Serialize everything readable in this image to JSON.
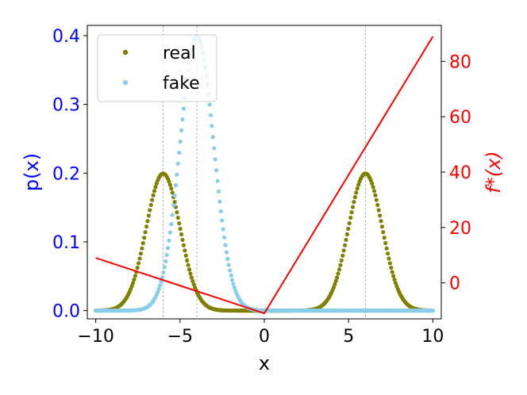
{
  "chart_data": {
    "type": "scatter",
    "title": "",
    "xlabel": "x",
    "ylabel_left": "p(x)",
    "ylabel_right": "f*(x)",
    "xlim": [
      -10.5,
      10.5
    ],
    "ylim_left": [
      -0.012,
      0.415
    ],
    "ylim_right": [
      -13,
      93
    ],
    "xticks": [
      -10,
      -5,
      0,
      5,
      10
    ],
    "xtick_labels": [
      "−10",
      "−5",
      "0",
      "5",
      "10"
    ],
    "yticks_left": [
      0.0,
      0.1,
      0.2,
      0.3,
      0.4
    ],
    "ytick_labels_left": [
      "0.0",
      "0.1",
      "0.2",
      "0.3",
      "0.4"
    ],
    "yticks_right": [
      0,
      20,
      40,
      60,
      80
    ],
    "ytick_labels_right": [
      "0",
      "20",
      "40",
      "60",
      "80"
    ],
    "vlines": [
      -6,
      -4,
      6
    ],
    "legend": {
      "placement": "top-left",
      "entries": [
        "real",
        "fake"
      ]
    },
    "colors": {
      "real": "#808000",
      "fake": "#87ceeb",
      "fstar": "#ff0000",
      "left_axis": "#0000ff",
      "right_axis": "#ff0000"
    },
    "series": [
      {
        "name": "real",
        "kind": "points",
        "axis": "left",
        "color": "#808000",
        "description_values": {
          "x_range": [
            -10,
            10
          ],
          "n_points": 300,
          "mixture": [
            {
              "mean": -6,
              "std": 1,
              "weight": 0.5
            },
            {
              "mean": 6,
              "std": 1,
              "weight": 0.5
            }
          ]
        }
      },
      {
        "name": "fake",
        "kind": "points",
        "axis": "left",
        "color": "#87ceeb",
        "description_values": {
          "x_range": [
            -10,
            10
          ],
          "n_points": 300,
          "mixture": [
            {
              "mean": -4,
              "std": 1,
              "weight": 1.0
            }
          ]
        }
      },
      {
        "name": "f*",
        "kind": "line",
        "axis": "right",
        "color": "#ff0000",
        "x": [
          -10,
          -9,
          -8,
          -7,
          -6,
          -5,
          -4,
          -3,
          -2,
          -1,
          0,
          1,
          2,
          3,
          4,
          5,
          6,
          7,
          8,
          9,
          10
        ],
        "y": [
          9,
          7,
          5,
          3,
          1,
          -1,
          -3,
          -5,
          -7,
          -9,
          -11,
          -1,
          9,
          19,
          29,
          39,
          49,
          59,
          69,
          79,
          89
        ]
      }
    ]
  }
}
